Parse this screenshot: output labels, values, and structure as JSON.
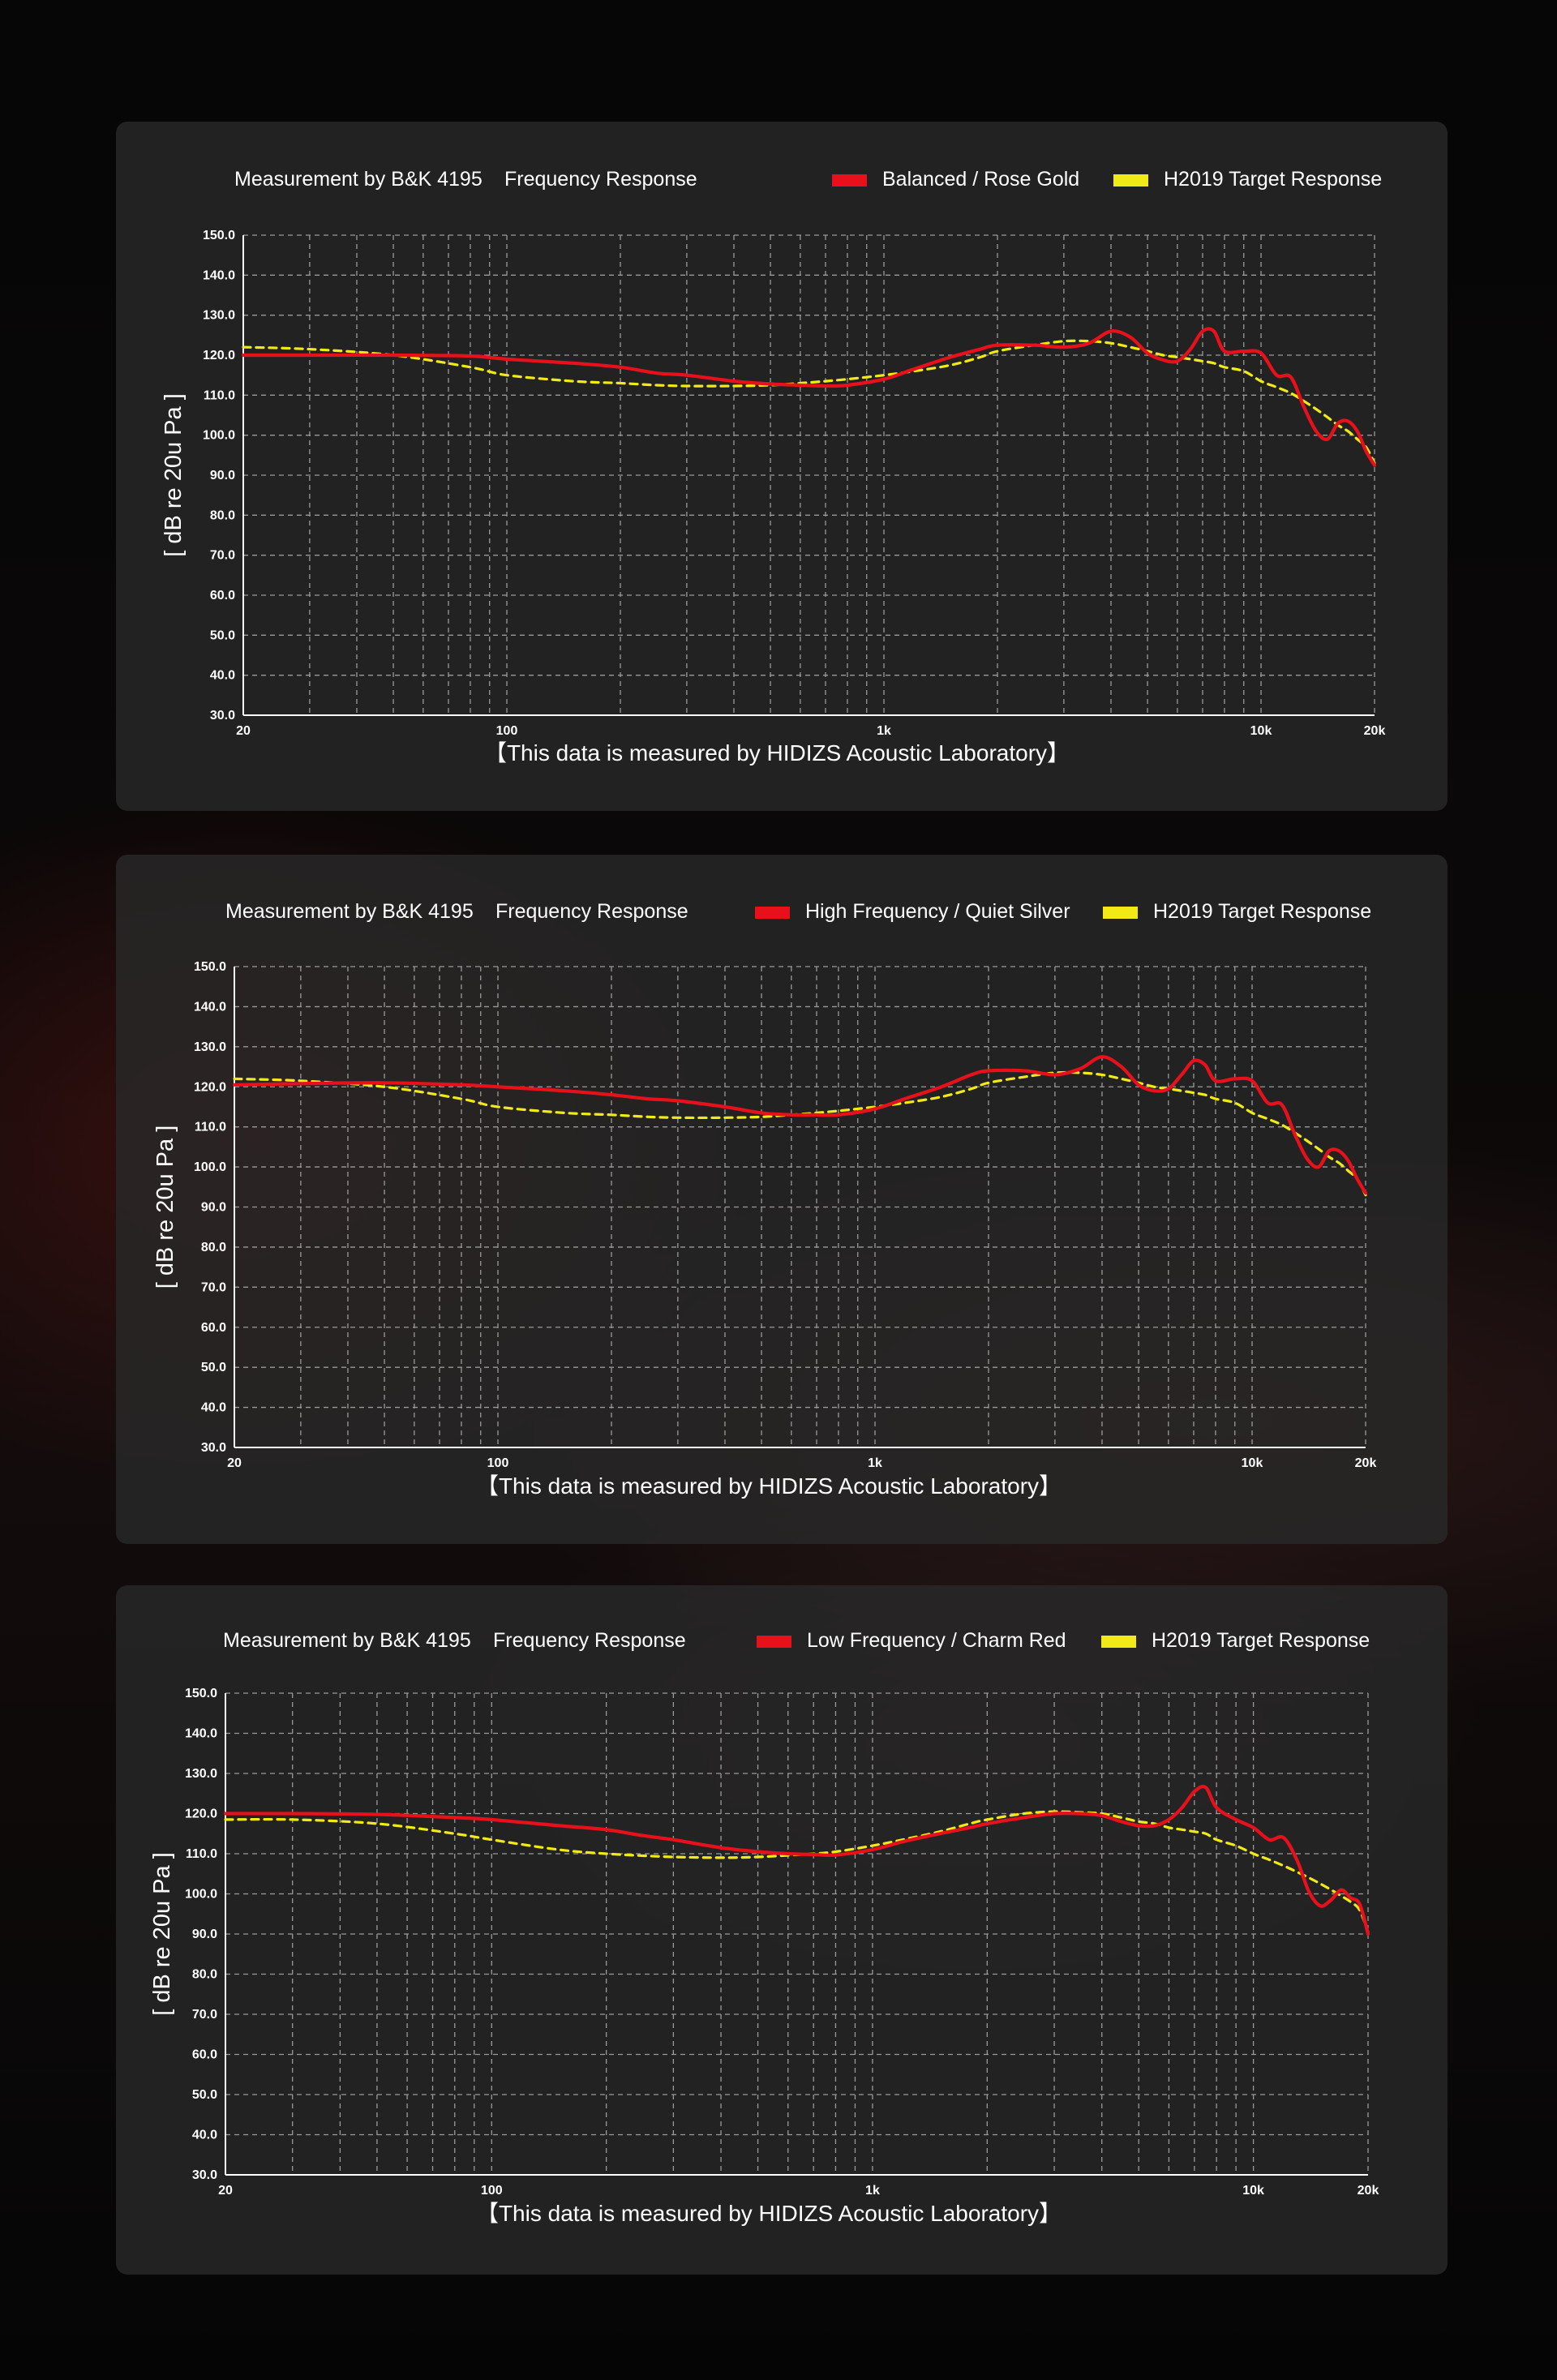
{
  "colors": {
    "background": "#050505",
    "panel": "#282828",
    "measured": "#e8111b",
    "target": "#f2ea16",
    "grid": "#9a9a9a",
    "axis": "#ffffff"
  },
  "chart_data": [
    {
      "type": "line",
      "title": "Measurement by B&K 4195",
      "subtitle": "Frequency Response",
      "xlabel": "",
      "ylabel": "[ dB re 20u Pa ]",
      "footer": "【This data is measured by HIDIZS Acoustic Laboratory】",
      "x_scale": "log",
      "xlim": [
        20,
        20000
      ],
      "ylim": [
        30,
        150
      ],
      "grid": true,
      "legend_placement": "top-right",
      "x_ticks": [
        "20",
        "100",
        "1k",
        "10k",
        "20k"
      ],
      "x_tick_values": [
        20,
        100,
        1000,
        10000,
        20000
      ],
      "y_ticks": [
        "30.0",
        "40.0",
        "50.0",
        "60.0",
        "70.0",
        "80.0",
        "90.0",
        "100.0",
        "110.0",
        "120.0",
        "130.0",
        "140.0",
        "150.0"
      ],
      "x": [
        20,
        30,
        50,
        80,
        100,
        150,
        200,
        250,
        300,
        400,
        500,
        600,
        700,
        800,
        1000,
        1200,
        1500,
        1800,
        2000,
        2500,
        3000,
        3500,
        4000,
        4500,
        5000,
        5500,
        6000,
        6500,
        7000,
        7500,
        8000,
        9000,
        10000,
        11000,
        12000,
        13000,
        14000,
        15000,
        16000,
        17000,
        18000,
        19000,
        20000
      ],
      "series": [
        {
          "name": "Balanced / Rose Gold",
          "color": "#e8111b",
          "style": "solid",
          "values": [
            120.0,
            120.0,
            120.0,
            119.8,
            119.0,
            118.0,
            117.0,
            115.5,
            115.0,
            113.5,
            112.8,
            112.5,
            112.3,
            112.5,
            114.0,
            116.5,
            119.5,
            121.5,
            122.5,
            122.5,
            122.0,
            123.0,
            126.0,
            124.5,
            120.5,
            118.8,
            118.5,
            121.5,
            126.0,
            126.0,
            121.0,
            121.0,
            120.5,
            115.0,
            114.5,
            107.0,
            101.0,
            99.0,
            103.0,
            103.5,
            101.0,
            96.0,
            92.5
          ]
        },
        {
          "name": "H2019 Target Response",
          "color": "#f2ea16",
          "style": "dashed",
          "values": [
            122.0,
            121.5,
            120.0,
            117.0,
            115.0,
            113.5,
            113.0,
            112.5,
            112.3,
            112.3,
            112.5,
            113.0,
            113.5,
            114.0,
            115.0,
            116.0,
            117.5,
            119.5,
            121.0,
            122.5,
            123.5,
            123.5,
            123.0,
            122.0,
            121.0,
            120.0,
            119.5,
            119.0,
            118.5,
            118.0,
            117.0,
            116.0,
            113.5,
            112.0,
            110.5,
            108.5,
            106.5,
            104.5,
            102.5,
            101.0,
            99.0,
            97.0,
            93.0
          ]
        }
      ]
    },
    {
      "type": "line",
      "title": "Measurement by B&K 4195",
      "subtitle": "Frequency Response",
      "xlabel": "",
      "ylabel": "[ dB re 20u Pa ]",
      "footer": "【This data is measured by HIDIZS Acoustic Laboratory】",
      "x_scale": "log",
      "xlim": [
        20,
        20000
      ],
      "ylim": [
        30,
        150
      ],
      "grid": true,
      "legend_placement": "top-right",
      "x_ticks": [
        "20",
        "100",
        "1k",
        "10k",
        "20k"
      ],
      "x_tick_values": [
        20,
        100,
        1000,
        10000,
        20000
      ],
      "y_ticks": [
        "30.0",
        "40.0",
        "50.0",
        "60.0",
        "70.0",
        "80.0",
        "90.0",
        "100.0",
        "110.0",
        "120.0",
        "130.0",
        "140.0",
        "150.0"
      ],
      "x": [
        20,
        30,
        50,
        80,
        100,
        150,
        200,
        250,
        300,
        400,
        500,
        600,
        700,
        800,
        1000,
        1200,
        1500,
        1800,
        2000,
        2500,
        3000,
        3500,
        4000,
        4500,
        5000,
        5500,
        6000,
        6500,
        7000,
        7500,
        8000,
        9000,
        10000,
        11000,
        12000,
        13000,
        14000,
        15000,
        16000,
        17000,
        18000,
        19000,
        20000
      ],
      "series": [
        {
          "name": "High Frequency / Quiet Silver",
          "color": "#e8111b",
          "style": "solid",
          "values": [
            120.5,
            120.8,
            121.0,
            120.5,
            120.0,
            119.0,
            118.0,
            117.0,
            116.5,
            115.0,
            113.5,
            113.0,
            113.0,
            113.0,
            114.5,
            117.0,
            120.0,
            123.0,
            124.0,
            124.0,
            123.0,
            124.5,
            127.5,
            125.0,
            120.5,
            119.0,
            119.5,
            123.0,
            126.5,
            125.5,
            121.5,
            122.0,
            121.5,
            116.0,
            115.5,
            108.0,
            102.0,
            100.0,
            104.0,
            104.0,
            101.5,
            97.0,
            93.5
          ]
        },
        {
          "name": "H2019 Target Response",
          "color": "#f2ea16",
          "style": "dashed",
          "values": [
            122.0,
            121.5,
            120.0,
            117.0,
            115.0,
            113.5,
            113.0,
            112.5,
            112.3,
            112.3,
            112.5,
            113.0,
            113.5,
            114.0,
            115.0,
            116.0,
            117.5,
            119.5,
            121.0,
            122.5,
            123.5,
            123.5,
            123.0,
            122.0,
            121.0,
            120.0,
            119.5,
            119.0,
            118.5,
            118.0,
            117.0,
            116.0,
            113.5,
            112.0,
            110.5,
            108.5,
            106.5,
            104.5,
            102.5,
            101.0,
            99.0,
            97.0,
            93.0
          ]
        }
      ]
    },
    {
      "type": "line",
      "title": "Measurement by B&K 4195",
      "subtitle": "Frequency Response",
      "xlabel": "",
      "ylabel": "[ dB re 20u Pa ]",
      "footer": "【This data is measured by HIDIZS Acoustic Laboratory】",
      "x_scale": "log",
      "xlim": [
        20,
        20000
      ],
      "ylim": [
        30,
        150
      ],
      "grid": true,
      "legend_placement": "top-right",
      "x_ticks": [
        "20",
        "100",
        "1k",
        "10k",
        "20k"
      ],
      "x_tick_values": [
        20,
        100,
        1000,
        10000,
        20000
      ],
      "y_ticks": [
        "30.0",
        "40.0",
        "50.0",
        "60.0",
        "70.0",
        "80.0",
        "90.0",
        "100.0",
        "110.0",
        "120.0",
        "130.0",
        "140.0",
        "150.0"
      ],
      "x": [
        20,
        30,
        50,
        80,
        100,
        150,
        200,
        250,
        300,
        400,
        500,
        600,
        700,
        800,
        1000,
        1200,
        1500,
        1800,
        2000,
        2500,
        3000,
        3500,
        4000,
        4500,
        5000,
        5500,
        6000,
        6500,
        7000,
        7500,
        8000,
        9000,
        10000,
        11000,
        12000,
        13000,
        14000,
        15000,
        16000,
        17000,
        18000,
        19000,
        20000
      ],
      "series": [
        {
          "name": "Low Frequency / Charm Red",
          "color": "#e8111b",
          "style": "solid",
          "values": [
            120.0,
            120.0,
            119.8,
            119.0,
            118.5,
            117.0,
            116.0,
            114.5,
            113.5,
            111.5,
            110.5,
            110.0,
            109.8,
            109.7,
            111.0,
            113.0,
            115.0,
            116.5,
            117.5,
            119.0,
            120.0,
            120.0,
            119.5,
            118.0,
            117.0,
            117.0,
            118.5,
            121.5,
            125.5,
            126.5,
            121.5,
            118.5,
            116.5,
            113.5,
            114.0,
            108.5,
            100.5,
            97.0,
            98.5,
            101.0,
            99.0,
            97.5,
            90.0
          ]
        },
        {
          "name": "H2019 Target Response",
          "color": "#f2ea16",
          "style": "dashed",
          "values": [
            118.5,
            118.5,
            117.5,
            115.0,
            113.5,
            111.0,
            110.0,
            109.5,
            109.2,
            109.0,
            109.2,
            109.6,
            110.0,
            110.5,
            112.0,
            113.5,
            115.5,
            117.5,
            118.5,
            120.0,
            120.5,
            120.3,
            120.0,
            119.0,
            118.0,
            117.5,
            116.5,
            116.0,
            115.5,
            115.0,
            113.5,
            112.0,
            110.0,
            108.5,
            107.0,
            105.5,
            104.0,
            102.5,
            101.0,
            99.5,
            98.0,
            96.0,
            90.5
          ]
        }
      ]
    }
  ]
}
